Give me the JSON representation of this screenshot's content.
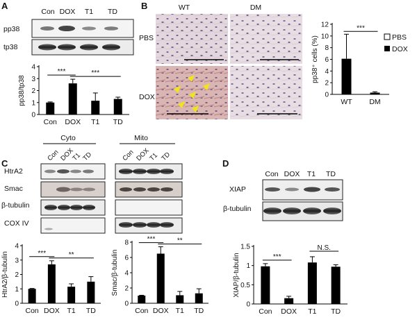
{
  "panels": {
    "A": {
      "label": "A",
      "lanes": [
        "Con",
        "DOX",
        "T1",
        "TD"
      ],
      "blots": [
        "pp38",
        "tp38"
      ]
    },
    "B": {
      "label": "B",
      "columns": [
        "WT",
        "DM"
      ],
      "rows": [
        "PBS",
        "DOX"
      ]
    },
    "C": {
      "label": "C",
      "groups": [
        "Cyto",
        "Mito"
      ],
      "lanes": [
        "Con",
        "DOX",
        "T1",
        "TD"
      ],
      "blots": [
        "HtrA2",
        "Smac",
        "β-tubulin",
        "COX IV"
      ]
    },
    "D": {
      "label": "D",
      "lanes": [
        "Con",
        "DOX",
        "T1",
        "TD"
      ],
      "blots": [
        "XIAP",
        "β-tubulin"
      ]
    }
  },
  "chart_data": [
    {
      "id": "A",
      "type": "bar",
      "categories": [
        "Con",
        "DOX",
        "T1",
        "TD"
      ],
      "values": [
        1.0,
        2.6,
        1.15,
        1.3
      ],
      "errors": [
        0.05,
        0.35,
        0.65,
        0.15
      ],
      "ylabel": "pp38/tp38",
      "ylim": [
        0,
        4
      ],
      "yticks": [
        "0",
        "1",
        "2",
        "3",
        "4"
      ],
      "sig": [
        {
          "from": 0,
          "to": 1,
          "label": "***"
        },
        {
          "from": 1,
          "to": 3,
          "label": "***"
        }
      ]
    },
    {
      "id": "B",
      "type": "bar",
      "categories": [
        "WT",
        "DM"
      ],
      "values": [
        6.1,
        0.3
      ],
      "errors": [
        4.2,
        0.15
      ],
      "ylabel": "pp38⁺ cells (%)",
      "ylim": [
        0,
        12
      ],
      "yticks": [
        "0",
        "2",
        "4",
        "6",
        "8",
        "10",
        "12"
      ],
      "legend": [
        "PBS",
        "DOX"
      ],
      "legend_position": "top-right",
      "sig": [
        {
          "from": 0,
          "to": 1,
          "label": "***"
        }
      ]
    },
    {
      "id": "C1",
      "type": "bar",
      "categories": [
        "Con",
        "DOX",
        "T1",
        "TD"
      ],
      "values": [
        1.0,
        2.7,
        1.15,
        1.5
      ],
      "errors": [
        0.03,
        0.25,
        0.2,
        0.35
      ],
      "ylabel": "HtrA2/β-tubulin",
      "ylim": [
        0,
        4
      ],
      "yticks": [
        "0",
        "1",
        "2",
        "3",
        "4"
      ],
      "sig": [
        {
          "from": 0,
          "to": 1,
          "label": "***"
        },
        {
          "from": 1,
          "to": 3,
          "label": "**"
        }
      ]
    },
    {
      "id": "C2",
      "type": "bar",
      "categories": [
        "Con",
        "DOX",
        "T1",
        "TD"
      ],
      "values": [
        1.0,
        6.5,
        1.05,
        1.3
      ],
      "errors": [
        0.05,
        0.9,
        0.5,
        0.6
      ],
      "ylabel": "Smac/β-tubulin",
      "ylim": [
        0,
        8
      ],
      "yticks": [
        "0",
        "2",
        "4",
        "6",
        "8"
      ],
      "sig": [
        {
          "from": 0,
          "to": 1,
          "label": "***"
        },
        {
          "from": 1,
          "to": 3,
          "label": "**"
        }
      ]
    },
    {
      "id": "D",
      "type": "bar",
      "categories": [
        "Con",
        "DOX",
        "T1",
        "TD"
      ],
      "values": [
        0.98,
        0.15,
        1.08,
        0.97
      ],
      "errors": [
        0.07,
        0.05,
        0.15,
        0.05
      ],
      "ylabel": "XIAP/β-tubulin",
      "ylim": [
        0,
        1.5
      ],
      "yticks": [
        "0",
        "0.5",
        "1",
        "1.5"
      ],
      "sig": [
        {
          "from": 0,
          "to": 1,
          "label": "***"
        },
        {
          "from": 2,
          "to": 3,
          "label": "N.S."
        }
      ]
    }
  ]
}
